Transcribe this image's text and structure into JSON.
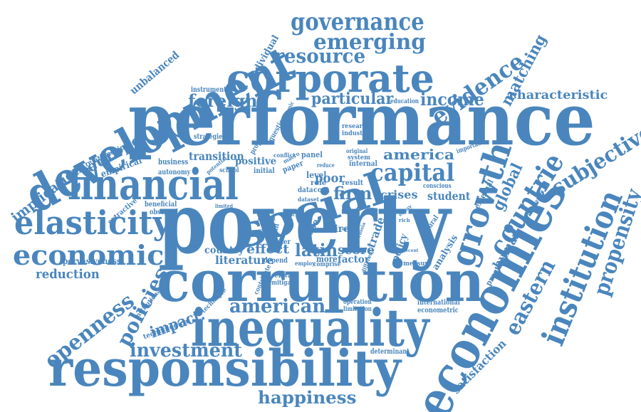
{
  "colors": {
    "word": "#4a86bd",
    "background": "#ffffff"
  },
  "words": {
    "poverty": "poverty",
    "performance": "performance",
    "corruption": "corruption",
    "inequality": "inequality",
    "responsibility": "responsibility",
    "economies": "economies",
    "development": "development",
    "financial": "financial",
    "social": "social",
    "corporate": "corporate",
    "elasticity": "elasticity",
    "economic": "economic",
    "growth": "growth",
    "countrie": "countrie",
    "institution": "institution",
    "governance": "governance",
    "emerging": "emerging",
    "resource": "resource",
    "evidence": "evidence",
    "income": "income",
    "matching": "matching",
    "characteristic": "characteristic",
    "subjective": "subjective",
    "propensity": "propensity",
    "eastern": "eastern",
    "capital": "capital",
    "america": "america",
    "american": "american",
    "investment": "investment",
    "happiness": "happiness",
    "openness": "openness",
    "policies": "policies",
    "impact": "impact.",
    "reduction": "reduction",
    "implication": "implication",
    "europe": "europe",
    "foreign": "foreign",
    "particular": "particular",
    "transition": "transition",
    "firm": "firm",
    "latin": "latin",
    "effect": "effect",
    "literature": "literature",
    "score": "score",
    "crises": "crises",
    "student": "student",
    "global": "global",
    "human": "human",
    "satisfaction": "satisfaction",
    "unbalanced": "unbalanced",
    "individual": "individual",
    "empirical": "empirical",
    "relationship": "relationship",
    "pervasiveness": "pervasiveness",
    "positive": "positive",
    "poor": "poor",
    "direct": "direct",
    "trade": "trade",
    "analysis": "analysis",
    "practical": "practical",
    "country": "country",
    "factor": "factor",
    "extractive": "extractive",
    "beneficial": "beneficial",
    "observed": "observed",
    "business": "business",
    "autonomy": "autonomy",
    "instrument": "instrument",
    "strategies": "strategies",
    "technological": "technological",
    "institutional": "institutional",
    "technique": "technique",
    "contribute": "contribute",
    "international": "international",
    "econometric": "econometric",
    "determinant": "determinant",
    "operation": "operation",
    "limitation": "limitation",
    "education": "education",
    "research": "research",
    "industry": "industry",
    "internal": "internal",
    "important": "important",
    "system": "system",
    "external": "external",
    "conscious": "conscious",
    "measure": "measure",
    "norm": "norm",
    "higher": "higher",
    "depend": "depend",
    "more": "more",
    "comprise": "comprise",
    "employ": "employ",
    "relevant": "relevant",
    "mitigate": "mitigate",
    "level": "level",
    "result": "result",
    "data": "data",
    "cost": "cost",
    "role": "role",
    "dataset": "dataset",
    "panel": "panel",
    "paper": "paper",
    "initial": "initial",
    "school": "school",
    "potential": "potential",
    "conflict": "conflict",
    "macro": "macro",
    "question": "question",
    "property": "property",
    "dynamic": "dynamic",
    "original": "original",
    "reduce": "reduce",
    "natural": "natural",
    "companies": "companies",
    "policy": "policy",
    "different": "different",
    "outpost": "outpost",
    "region": "region",
    "extent": "extent",
    "limited": "limited",
    "back": "back",
    "case": "case",
    "essay": "essay",
    "rich": "rich",
    "right": "right",
    "extend": "extend",
    "russia": "russia",
    "recent": "recent"
  }
}
